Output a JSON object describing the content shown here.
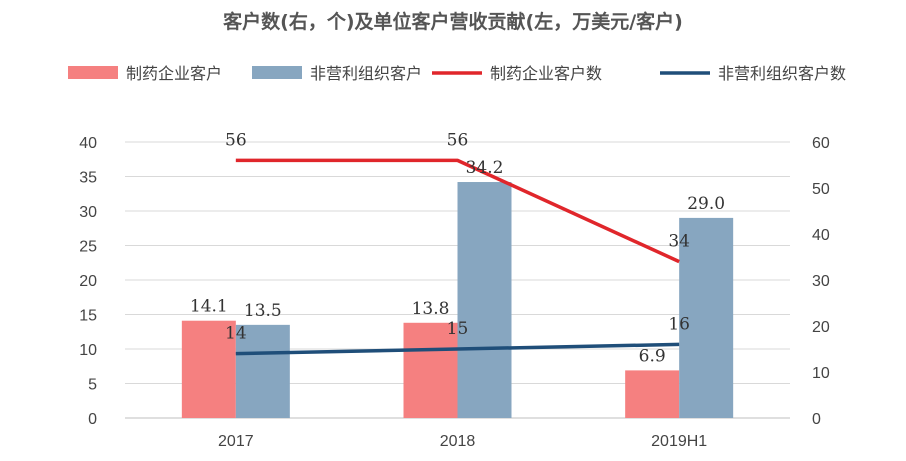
{
  "chart_data": {
    "type": "bar",
    "title": "客户数(右，个)及单位客户营收贡献(左，万美元/客户)",
    "categories": [
      "2017",
      "2018",
      "2019H1"
    ],
    "series": [
      {
        "name": "制药企业客户",
        "kind": "bar",
        "axis": "left",
        "color": "#f58080",
        "values": [
          14.1,
          13.8,
          6.9
        ],
        "labels": [
          "14.1",
          "13.8",
          "6.9"
        ]
      },
      {
        "name": "非营利组织客户",
        "kind": "bar",
        "axis": "left",
        "color": "#87a6c0",
        "values": [
          13.5,
          34.2,
          29.0
        ],
        "labels": [
          "13.5",
          "34.2",
          "29.0"
        ]
      },
      {
        "name": "制药企业客户数",
        "kind": "line",
        "axis": "right",
        "color": "#e0262b",
        "x": [
          "2017",
          "2018",
          "2019H1"
        ],
        "values": [
          56,
          56,
          34
        ],
        "labels": [
          "56",
          "56",
          "34"
        ]
      },
      {
        "name": "非营利组织客户数",
        "kind": "line",
        "axis": "right",
        "color": "#1f4e79",
        "values": [
          14,
          15,
          16
        ],
        "labels": [
          "14",
          "15",
          "16"
        ]
      }
    ],
    "y_left": {
      "min": 0,
      "max": 40,
      "ticks": [
        0,
        5,
        10,
        15,
        20,
        25,
        30,
        35,
        40
      ]
    },
    "y_right": {
      "min": 0,
      "max": 60,
      "ticks": [
        0,
        10,
        20,
        30,
        40,
        50,
        60
      ]
    },
    "grid": true,
    "legend_position": "top"
  }
}
